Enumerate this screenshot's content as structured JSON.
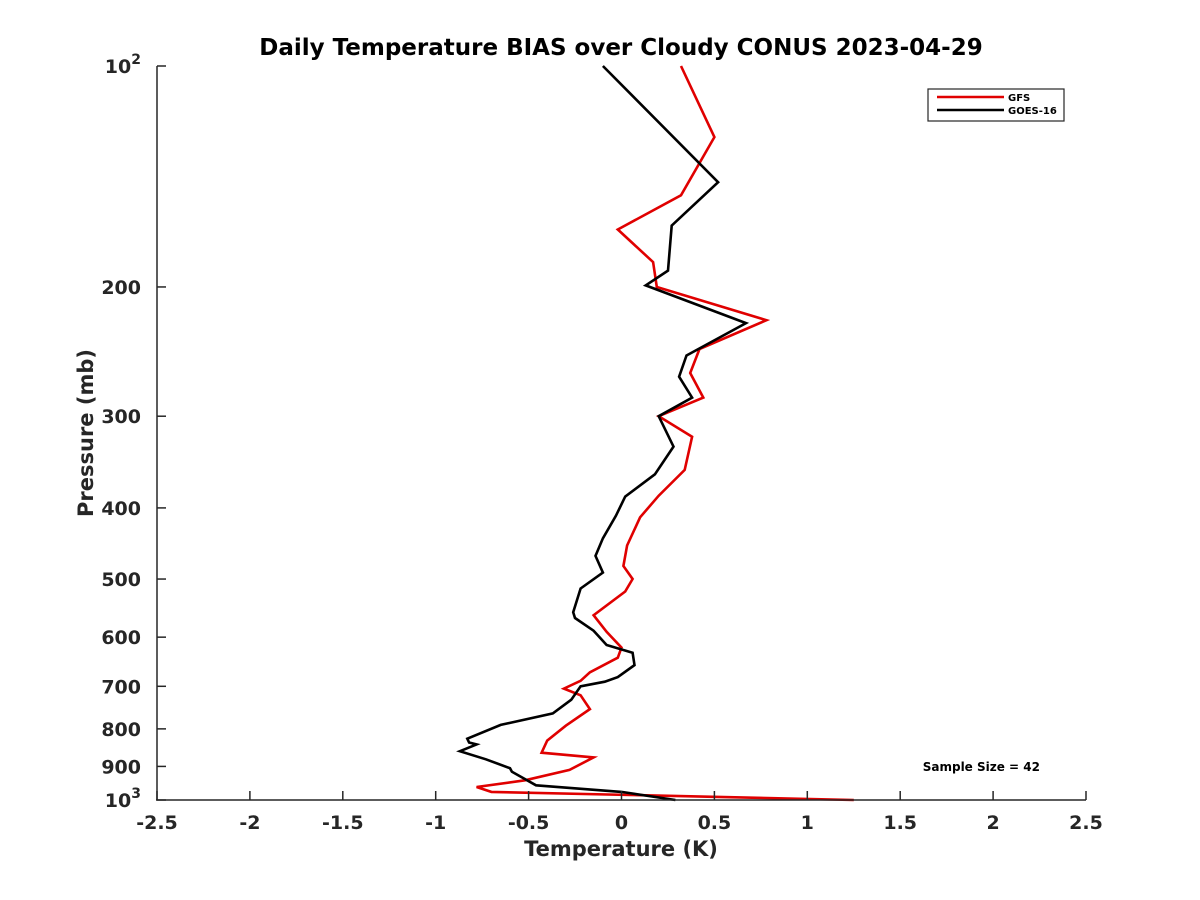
{
  "chart_data": {
    "type": "line",
    "title": "Daily Temperature BIAS over Cloudy CONUS 2023-04-29",
    "xlabel": "Temperature (K)",
    "ylabel": "Pressure (mb)",
    "xlim": [
      -2.5,
      2.5
    ],
    "ylim": [
      100,
      1000
    ],
    "y_scale": "log",
    "y_reversed": true,
    "x_ticks": [
      -2.5,
      -2,
      -1.5,
      -1,
      -0.5,
      0,
      0.5,
      1,
      1.5,
      2,
      2.5
    ],
    "x_tick_labels": [
      "-2.5",
      "-2",
      "-1.5",
      "-1",
      "-0.5",
      "0",
      "0.5",
      "1",
      "1.5",
      "2",
      "2.5"
    ],
    "y_ticks": [
      {
        "value": 100,
        "base": "10",
        "exp": "2"
      },
      {
        "value": 200,
        "label": "200"
      },
      {
        "value": 300,
        "label": "300"
      },
      {
        "value": 400,
        "label": "400"
      },
      {
        "value": 500,
        "label": "500"
      },
      {
        "value": 600,
        "label": "600"
      },
      {
        "value": 700,
        "label": "700"
      },
      {
        "value": 800,
        "label": "800"
      },
      {
        "value": 900,
        "label": "900"
      },
      {
        "value": 1000,
        "base": "10",
        "exp": "3"
      }
    ],
    "legend": {
      "position": "top-right"
    },
    "annotation": "Sample Size = 42",
    "series": [
      {
        "name": "GFS",
        "color": "#e00000",
        "points": [
          [
            0.32,
            100
          ],
          [
            0.5,
            125
          ],
          [
            0.32,
            150
          ],
          [
            -0.02,
            167
          ],
          [
            0.17,
            185
          ],
          [
            0.19,
            200
          ],
          [
            0.78,
            222
          ],
          [
            0.42,
            243
          ],
          [
            0.37,
            262
          ],
          [
            0.44,
            283
          ],
          [
            0.2,
            300
          ],
          [
            0.38,
            320
          ],
          [
            0.34,
            355
          ],
          [
            0.2,
            385
          ],
          [
            0.1,
            412
          ],
          [
            0.03,
            450
          ],
          [
            0.01,
            480
          ],
          [
            0.06,
            500
          ],
          [
            0.02,
            520
          ],
          [
            -0.15,
            560
          ],
          [
            -0.08,
            590
          ],
          [
            0.0,
            620
          ],
          [
            -0.02,
            640
          ],
          [
            -0.17,
            670
          ],
          [
            -0.22,
            688
          ],
          [
            -0.31,
            705
          ],
          [
            -0.22,
            720
          ],
          [
            -0.17,
            752
          ],
          [
            -0.3,
            792
          ],
          [
            -0.4,
            830
          ],
          [
            -0.43,
            862
          ],
          [
            -0.15,
            875
          ],
          [
            -0.28,
            910
          ],
          [
            -0.52,
            940
          ],
          [
            -0.78,
            960
          ],
          [
            -0.7,
            975
          ],
          [
            1.25,
            1000
          ]
        ]
      },
      {
        "name": "GOES-16",
        "color": "#000000",
        "points": [
          [
            -0.1,
            100
          ],
          [
            0.52,
            144
          ],
          [
            0.27,
            165
          ],
          [
            0.25,
            190
          ],
          [
            0.13,
            199
          ],
          [
            0.67,
            224
          ],
          [
            0.35,
            248
          ],
          [
            0.31,
            265
          ],
          [
            0.38,
            283
          ],
          [
            0.2,
            300
          ],
          [
            0.28,
            330
          ],
          [
            0.18,
            360
          ],
          [
            0.02,
            386
          ],
          [
            -0.03,
            410
          ],
          [
            -0.1,
            440
          ],
          [
            -0.14,
            465
          ],
          [
            -0.1,
            490
          ],
          [
            -0.22,
            515
          ],
          [
            -0.26,
            555
          ],
          [
            -0.25,
            565
          ],
          [
            -0.15,
            588
          ],
          [
            -0.08,
            615
          ],
          [
            0.06,
            630
          ],
          [
            0.07,
            655
          ],
          [
            -0.02,
            680
          ],
          [
            -0.09,
            690
          ],
          [
            -0.22,
            700
          ],
          [
            -0.27,
            730
          ],
          [
            -0.37,
            762
          ],
          [
            -0.65,
            790
          ],
          [
            -0.83,
            825
          ],
          [
            -0.82,
            835
          ],
          [
            -0.78,
            840
          ],
          [
            -0.87,
            858
          ],
          [
            -0.73,
            880
          ],
          [
            -0.6,
            905
          ],
          [
            -0.59,
            915
          ],
          [
            -0.46,
            955
          ],
          [
            0.0,
            975
          ],
          [
            0.29,
            1000
          ]
        ]
      }
    ]
  }
}
